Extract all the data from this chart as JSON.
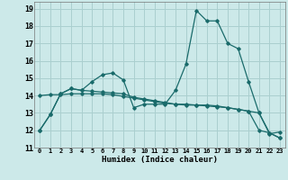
{
  "xlabel": "Humidex (Indice chaleur)",
  "xlim": [
    -0.5,
    23.5
  ],
  "ylim": [
    11,
    19.4
  ],
  "yticks": [
    11,
    12,
    13,
    14,
    15,
    16,
    17,
    18,
    19
  ],
  "xticks": [
    0,
    1,
    2,
    3,
    4,
    5,
    6,
    7,
    8,
    9,
    10,
    11,
    12,
    13,
    14,
    15,
    16,
    17,
    18,
    19,
    20,
    21,
    22,
    23
  ],
  "bg_color": "#cce9e9",
  "grid_color": "#aacfcf",
  "line_color": "#1a6b6b",
  "series1": [
    12.0,
    12.9,
    14.1,
    14.4,
    14.3,
    14.8,
    15.2,
    15.3,
    14.9,
    13.3,
    13.5,
    13.5,
    13.5,
    14.3,
    15.8,
    18.9,
    18.3,
    18.3,
    17.0,
    16.7,
    14.8,
    13.0,
    11.8,
    11.9
  ],
  "series2": [
    12.0,
    12.9,
    14.1,
    14.4,
    14.3,
    14.25,
    14.2,
    14.15,
    14.1,
    13.9,
    13.8,
    13.7,
    13.6,
    13.5,
    13.45,
    13.45,
    13.45,
    13.4,
    13.3,
    13.2,
    13.1,
    12.0,
    11.85,
    11.55
  ],
  "series3": [
    14.0,
    14.05,
    14.05,
    14.1,
    14.1,
    14.1,
    14.1,
    14.05,
    13.95,
    13.85,
    13.75,
    13.65,
    13.55,
    13.5,
    13.5,
    13.45,
    13.4,
    13.35,
    13.3,
    13.2,
    13.1,
    13.0,
    11.85,
    11.55
  ]
}
